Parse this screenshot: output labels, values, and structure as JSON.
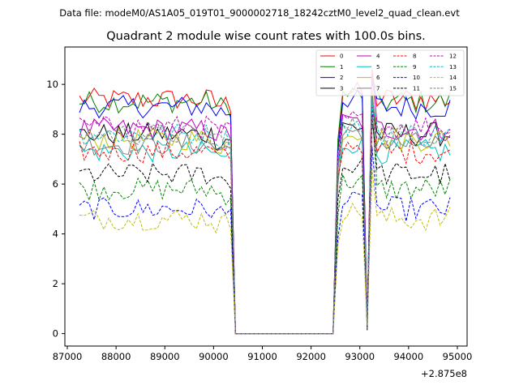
{
  "header": {
    "file_label": "Data file: modeM0/AS1A05_019T01_9000002718_18242cztM0_level2_quad_clean.evt"
  },
  "chart_data": {
    "type": "line",
    "title": "Quadrant 2 module wise count rates with 100.0s bins.",
    "xlabel": "",
    "ylabel": "",
    "x_offset_label": "+2.875e8",
    "xlim": [
      86950,
      95200
    ],
    "ylim": [
      -0.5,
      11.5
    ],
    "xticks": [
      87000,
      88000,
      89000,
      90000,
      91000,
      92000,
      93000,
      94000,
      95000
    ],
    "yticks": [
      0,
      2,
      4,
      6,
      8,
      10
    ],
    "legend_placement": "top-right",
    "x_start": 87250,
    "x_step": 100,
    "gap_start": 90450,
    "gap_end": 92450,
    "dip_x": 93150,
    "spike_x": 93250,
    "x_end": 94850,
    "series": [
      {
        "name": "0",
        "color": "#ff0000",
        "dash": "solid",
        "mean": 9.4,
        "spike": 10.6
      },
      {
        "name": "1",
        "color": "#008000",
        "dash": "solid",
        "mean": 9.3,
        "spike": 10.2
      },
      {
        "name": "2",
        "color": "#0000ff",
        "dash": "solid",
        "mean": 9.1,
        "spike": 10.1
      },
      {
        "name": "3",
        "color": "#000000",
        "dash": "solid",
        "mean": 8.0,
        "spike": 9.6
      },
      {
        "name": "4",
        "color": "#bf00bf",
        "dash": "solid",
        "mean": 8.2,
        "spike": 10.4
      },
      {
        "name": "5",
        "color": "#00bfbf",
        "dash": "solid",
        "mean": 7.3,
        "spike": 9.5
      },
      {
        "name": "6",
        "color": "#bfbf00",
        "dash": "solid",
        "mean": 7.8,
        "spike": 9.8
      },
      {
        "name": "7",
        "color": "#808080",
        "dash": "solid",
        "mean": 7.6,
        "spike": 9.8
      },
      {
        "name": "8",
        "color": "#ff0000",
        "dash": "dashed",
        "mean": 7.3,
        "spike": 8.4
      },
      {
        "name": "9",
        "color": "#008000",
        "dash": "dashed",
        "mean": 5.8,
        "spike": 9.1
      },
      {
        "name": "10",
        "color": "#0000ff",
        "dash": "dashed",
        "mean": 5.0,
        "spike": 7.5
      },
      {
        "name": "11",
        "color": "#000000",
        "dash": "dashed",
        "mean": 6.4,
        "spike": 8.8
      },
      {
        "name": "12",
        "color": "#bf00bf",
        "dash": "dashed",
        "mean": 8.3,
        "spike": 9.1
      },
      {
        "name": "13",
        "color": "#00bfbf",
        "dash": "dashed",
        "mean": 8.0,
        "spike": 9.4
      },
      {
        "name": "14",
        "color": "#bfbf00",
        "dash": "dashed",
        "mean": 4.6,
        "spike": 6.6
      },
      {
        "name": "15",
        "color": "#808080",
        "dash": "dashed",
        "mean": 8.0,
        "spike": 8.7
      }
    ]
  }
}
